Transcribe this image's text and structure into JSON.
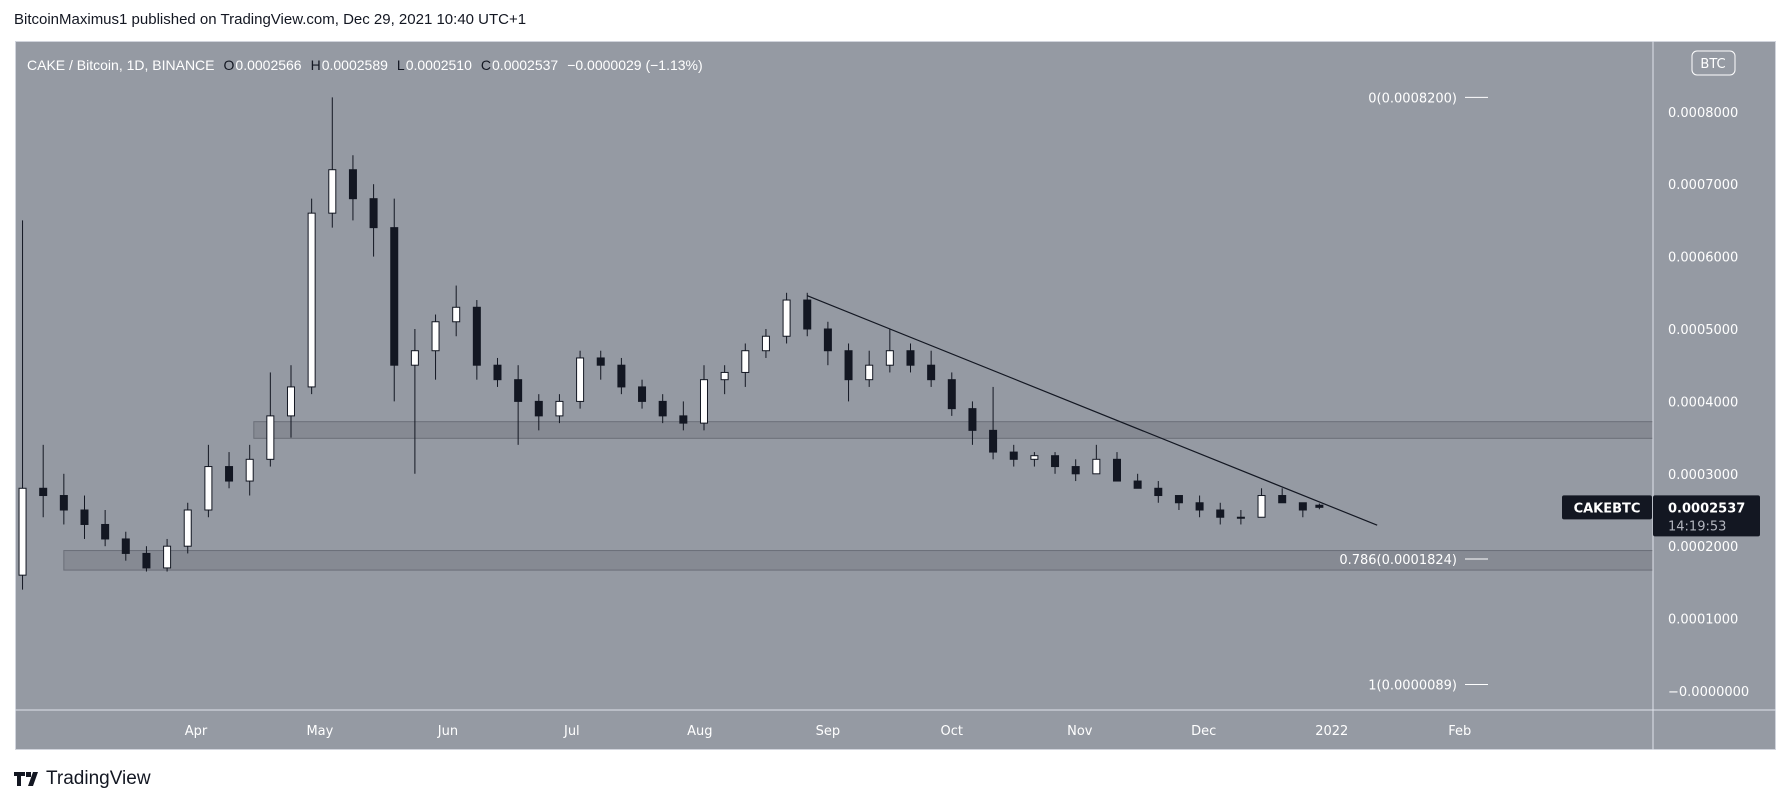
{
  "header": {
    "published": "BitcoinMaximus1 published on TradingView.com, Dec 29, 2021 10:40 UTC+1"
  },
  "legend": {
    "symbol": "CAKE / Bitcoin, 1D, BINANCE",
    "o_label": "O",
    "o": "0.0002566",
    "h_label": "H",
    "h": "0.0002589",
    "l_label": "L",
    "l": "0.0002510",
    "c_label": "C",
    "c": "0.0002537",
    "change": "−0.0000029 (−1.13%)"
  },
  "currency_badge": "BTC",
  "last_price": {
    "symbol": "CAKEBTC",
    "price": "0.0002537",
    "countdown": "14:19:53"
  },
  "footer": {
    "brand": "TradingView"
  },
  "colors": {
    "background": "#959aa3",
    "up": "#ffffff",
    "down": "#131722",
    "zone": "#868a93",
    "label_bg": "#131722"
  },
  "chart_data": {
    "type": "candlestick",
    "ylim": [
      0,
      0.00085
    ],
    "y_ticks": [
      "0.0008000",
      "0.0007000",
      "0.0006000",
      "0.0005000",
      "0.0004000",
      "0.0003000",
      "0.0002000",
      "0.0001000",
      "−0.0000000"
    ],
    "y_tick_values": [
      0.0008,
      0.0007,
      0.0006,
      0.0005,
      0.0004,
      0.0003,
      0.0002,
      0.0001,
      0
    ],
    "x_ticks": [
      {
        "label": "Apr",
        "date": "2021-04-01"
      },
      {
        "label": "May",
        "date": "2021-05-01"
      },
      {
        "label": "Jun",
        "date": "2021-06-01"
      },
      {
        "label": "Jul",
        "date": "2021-07-01"
      },
      {
        "label": "Aug",
        "date": "2021-08-01"
      },
      {
        "label": "Sep",
        "date": "2021-09-01"
      },
      {
        "label": "Oct",
        "date": "2021-10-01"
      },
      {
        "label": "Nov",
        "date": "2021-11-01"
      },
      {
        "label": "Dec",
        "date": "2021-12-01"
      },
      {
        "label": "2022",
        "date": "2022-01-01"
      },
      {
        "label": "Feb",
        "date": "2022-02-01"
      }
    ],
    "candles": [
      [
        "2021-02-18",
        0.00016,
        0.00065,
        0.00014,
        0.00028
      ],
      [
        "2021-02-23",
        0.00028,
        0.00034,
        0.00024,
        0.00027
      ],
      [
        "2021-02-28",
        0.00027,
        0.0003,
        0.00023,
        0.00025
      ],
      [
        "2021-03-05",
        0.00025,
        0.00027,
        0.00021,
        0.00023
      ],
      [
        "2021-03-10",
        0.00023,
        0.00025,
        0.0002,
        0.00021
      ],
      [
        "2021-03-15",
        0.00021,
        0.00022,
        0.00018,
        0.00019
      ],
      [
        "2021-03-20",
        0.00019,
        0.0002,
        0.000165,
        0.00017
      ],
      [
        "2021-03-25",
        0.00017,
        0.00021,
        0.000165,
        0.0002
      ],
      [
        "2021-03-30",
        0.0002,
        0.00026,
        0.00019,
        0.00025
      ],
      [
        "2021-04-04",
        0.00025,
        0.00034,
        0.00024,
        0.00031
      ],
      [
        "2021-04-09",
        0.00031,
        0.00033,
        0.00028,
        0.00029
      ],
      [
        "2021-04-14",
        0.00029,
        0.00034,
        0.00027,
        0.00032
      ],
      [
        "2021-04-19",
        0.00032,
        0.00044,
        0.00031,
        0.00038
      ],
      [
        "2021-04-24",
        0.00038,
        0.00045,
        0.00035,
        0.00042
      ],
      [
        "2021-04-29",
        0.00042,
        0.00068,
        0.00041,
        0.00066
      ],
      [
        "2021-05-04",
        0.00066,
        0.00082,
        0.00064,
        0.00072
      ],
      [
        "2021-05-09",
        0.00072,
        0.00074,
        0.00065,
        0.00068
      ],
      [
        "2021-05-14",
        0.00068,
        0.0007,
        0.0006,
        0.00064
      ],
      [
        "2021-05-19",
        0.00064,
        0.00068,
        0.0004,
        0.00045
      ],
      [
        "2021-05-24",
        0.00045,
        0.0005,
        0.0003,
        0.00047
      ],
      [
        "2021-05-29",
        0.00047,
        0.00052,
        0.00043,
        0.00051
      ],
      [
        "2021-06-03",
        0.00051,
        0.00056,
        0.00049,
        0.00053
      ],
      [
        "2021-06-08",
        0.00053,
        0.00054,
        0.00043,
        0.00045
      ],
      [
        "2021-06-13",
        0.00045,
        0.00046,
        0.00042,
        0.00043
      ],
      [
        "2021-06-18",
        0.00043,
        0.00045,
        0.00034,
        0.0004
      ],
      [
        "2021-06-23",
        0.0004,
        0.00041,
        0.00036,
        0.00038
      ],
      [
        "2021-06-28",
        0.00038,
        0.00041,
        0.00037,
        0.0004
      ],
      [
        "2021-07-03",
        0.0004,
        0.00047,
        0.00039,
        0.00046
      ],
      [
        "2021-07-08",
        0.00046,
        0.00047,
        0.00043,
        0.00045
      ],
      [
        "2021-07-13",
        0.00045,
        0.00046,
        0.00041,
        0.00042
      ],
      [
        "2021-07-18",
        0.00042,
        0.00043,
        0.00039,
        0.0004
      ],
      [
        "2021-07-23",
        0.0004,
        0.00041,
        0.00037,
        0.00038
      ],
      [
        "2021-07-28",
        0.00038,
        0.0004,
        0.00036,
        0.00037
      ],
      [
        "2021-08-02",
        0.00037,
        0.00045,
        0.00036,
        0.00043
      ],
      [
        "2021-08-07",
        0.00043,
        0.00045,
        0.00041,
        0.00044
      ],
      [
        "2021-08-12",
        0.00044,
        0.00048,
        0.00042,
        0.00047
      ],
      [
        "2021-08-17",
        0.00047,
        0.0005,
        0.00046,
        0.00049
      ],
      [
        "2021-08-22",
        0.00049,
        0.00055,
        0.00048,
        0.00054
      ],
      [
        "2021-08-27",
        0.00054,
        0.00055,
        0.00049,
        0.0005
      ],
      [
        "2021-09-01",
        0.0005,
        0.00051,
        0.00045,
        0.00047
      ],
      [
        "2021-09-06",
        0.00047,
        0.00048,
        0.0004,
        0.00043
      ],
      [
        "2021-09-11",
        0.00043,
        0.00047,
        0.00042,
        0.00045
      ],
      [
        "2021-09-16",
        0.00045,
        0.0005,
        0.00044,
        0.00047
      ],
      [
        "2021-09-21",
        0.00047,
        0.00048,
        0.00044,
        0.00045
      ],
      [
        "2021-09-26",
        0.00045,
        0.00047,
        0.00042,
        0.00043
      ],
      [
        "2021-10-01",
        0.00043,
        0.00044,
        0.00038,
        0.00039
      ],
      [
        "2021-10-06",
        0.00039,
        0.0004,
        0.00034,
        0.00036
      ],
      [
        "2021-10-11",
        0.00036,
        0.00042,
        0.00032,
        0.00033
      ],
      [
        "2021-10-16",
        0.00033,
        0.00034,
        0.00031,
        0.00032
      ],
      [
        "2021-10-21",
        0.00032,
        0.00033,
        0.00031,
        0.000325
      ],
      [
        "2021-10-26",
        0.000325,
        0.00033,
        0.0003,
        0.00031
      ],
      [
        "2021-10-31",
        0.00031,
        0.00032,
        0.00029,
        0.0003
      ],
      [
        "2021-11-05",
        0.0003,
        0.00034,
        0.0003,
        0.00032
      ],
      [
        "2021-11-10",
        0.00032,
        0.00033,
        0.00029,
        0.00029
      ],
      [
        "2021-11-15",
        0.00029,
        0.0003,
        0.00028,
        0.00028
      ],
      [
        "2021-11-20",
        0.00028,
        0.00029,
        0.00026,
        0.00027
      ],
      [
        "2021-11-25",
        0.00027,
        0.00027,
        0.00025,
        0.00026
      ],
      [
        "2021-11-30",
        0.00026,
        0.00027,
        0.00024,
        0.00025
      ],
      [
        "2021-12-05",
        0.00025,
        0.00026,
        0.00023,
        0.00024
      ],
      [
        "2021-12-10",
        0.00024,
        0.00025,
        0.00023,
        0.00024
      ],
      [
        "2021-12-15",
        0.00024,
        0.00028,
        0.00024,
        0.00027
      ],
      [
        "2021-12-20",
        0.00027,
        0.00028,
        0.00026,
        0.00026
      ],
      [
        "2021-12-25",
        0.00026,
        0.00026,
        0.00024,
        0.00025
      ],
      [
        "2021-12-29",
        0.0002566,
        0.0002589,
        0.000251,
        0.0002537
      ]
    ],
    "trendline": [
      {
        "date": "2021-08-27",
        "price": 0.000546
      },
      {
        "date": "2022-01-12",
        "price": 0.000229
      }
    ],
    "zones": [
      {
        "from": "2021-04-15",
        "low": 0.000349,
        "high": 0.000372
      },
      {
        "from": "2021-02-28",
        "low": 0.000167,
        "high": 0.000194
      }
    ],
    "fib_levels": [
      {
        "label": "0(0.0008200)",
        "price": 0.00082
      },
      {
        "label": "0.786(0.0001824)",
        "price": 0.0001824
      },
      {
        "label": "1(0.0000089)",
        "price": 8.9e-06
      }
    ]
  }
}
